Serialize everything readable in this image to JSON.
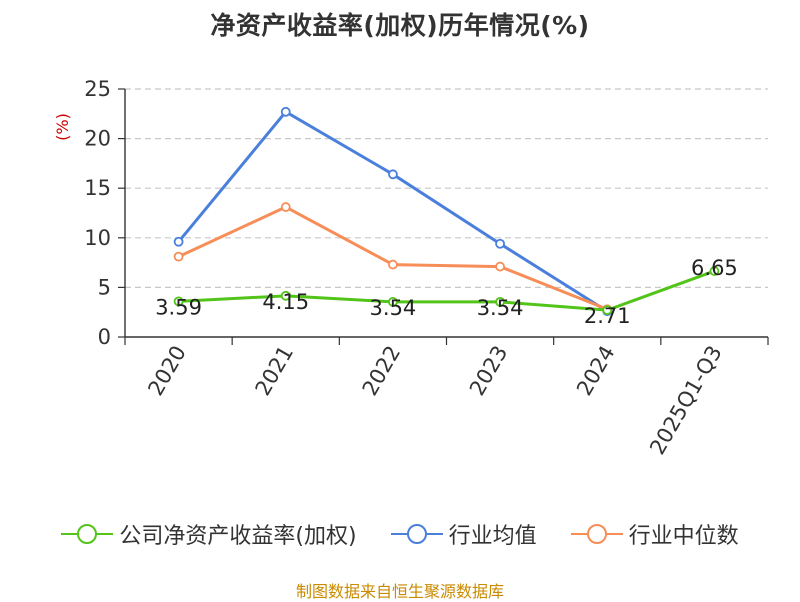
{
  "chart_data": {
    "type": "line",
    "title": "净资产收益率(加权)历年情况(%)",
    "ylabel": "(%)",
    "xlabel": "",
    "categories": [
      "2020",
      "2021",
      "2022",
      "2023",
      "2024",
      "2025Q1-Q3"
    ],
    "ylim": [
      0,
      25
    ],
    "yticks": [
      0,
      5,
      10,
      15,
      20,
      25
    ],
    "grid": true,
    "legend_position": "bottom",
    "series": [
      {
        "name": "公司净资产收益率(加权)",
        "color": "#52c41a",
        "values": [
          3.59,
          4.15,
          3.54,
          3.54,
          2.71,
          6.65
        ],
        "show_labels": true
      },
      {
        "name": "行业均值",
        "color": "#4a7fdc",
        "values": [
          9.6,
          22.7,
          16.4,
          9.4,
          2.6,
          null
        ],
        "show_labels": false
      },
      {
        "name": "行业中位数",
        "color": "#f78d57",
        "values": [
          8.1,
          13.1,
          7.3,
          7.1,
          2.8,
          null
        ],
        "show_labels": false
      }
    ]
  },
  "source": "制图数据来自恒生聚源数据库"
}
